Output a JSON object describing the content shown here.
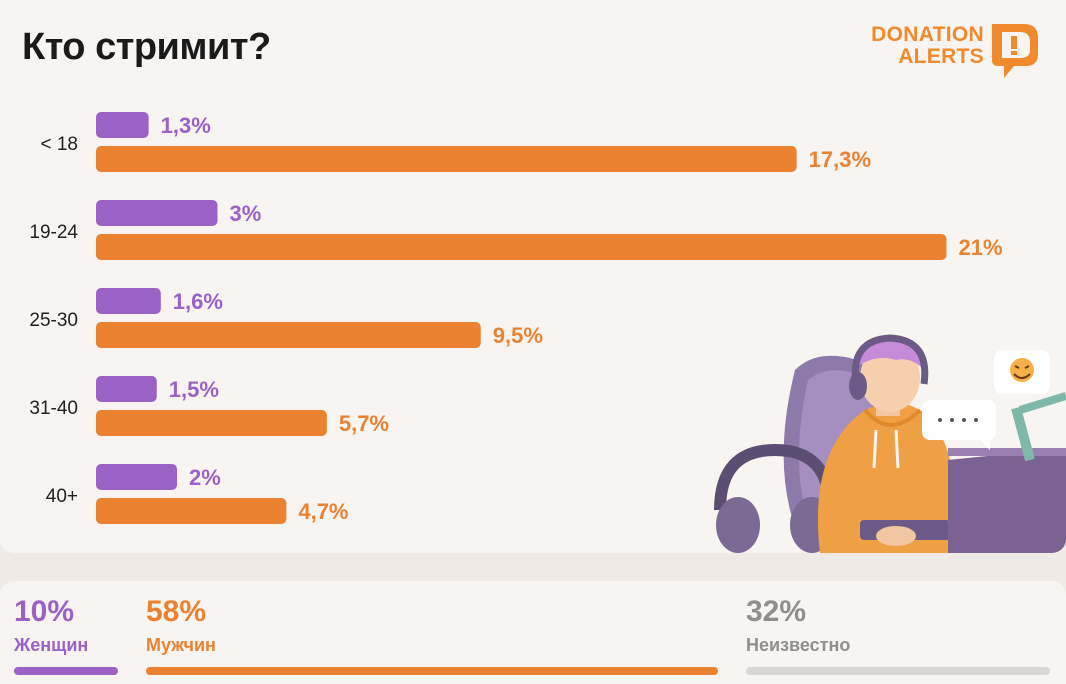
{
  "title": "Кто стримит?",
  "logo": {
    "line1": "DONATION",
    "line2": "ALERTS",
    "mark": "D"
  },
  "colors": {
    "female": "#9b62c6",
    "male": "#ea8232",
    "unknown": "#8f8f8f",
    "unknown_bar": "#d9d6d3"
  },
  "chart_data": {
    "type": "bar",
    "orientation": "horizontal",
    "categories": [
      "< 18",
      "19-24",
      "25-30",
      "31-40",
      "40+"
    ],
    "series": [
      {
        "values": [
          1.3,
          3,
          1.6,
          1.5,
          2
        ],
        "labels": [
          "1,3%",
          "3%",
          "1,6%",
          "1,5%",
          "2%"
        ],
        "color": "#9b62c6"
      },
      {
        "values": [
          17.3,
          21,
          9.5,
          5.7,
          4.7
        ],
        "labels": [
          "17,3%",
          "21%",
          "9,5%",
          "5,7%",
          "4,7%"
        ],
        "color": "#ea8232"
      }
    ],
    "grid": false,
    "axis_visible": false
  },
  "summary": [
    {
      "pct": "10%",
      "label": "Женщин",
      "value": 10
    },
    {
      "pct": "58%",
      "label": "Мужчин",
      "value": 58
    },
    {
      "pct": "32%",
      "label": "Неизвестно",
      "value": 32
    }
  ]
}
